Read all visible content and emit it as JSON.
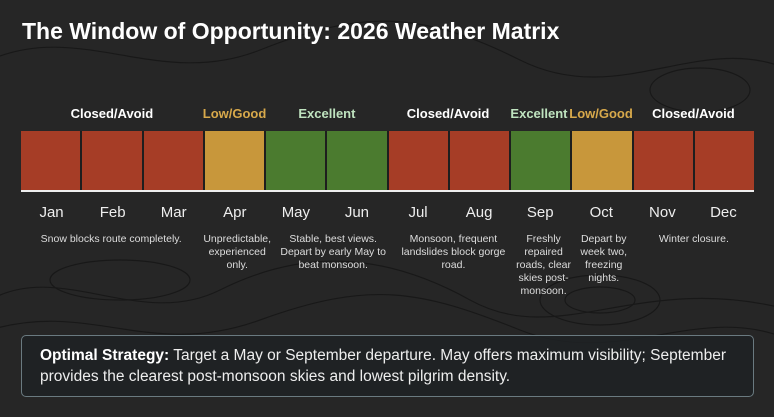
{
  "title": "The Window of Opportunity: 2026 Weather Matrix",
  "colors": {
    "closed": "#a63d26",
    "low": "#c8973b",
    "excellent": "#4b7b2f",
    "closed_label": "#ffffff",
    "low_label": "#d8a94b",
    "excellent_label": "#bfe3bf"
  },
  "groups": [
    {
      "label": "Closed/Avoid",
      "status": "closed",
      "span": [
        1,
        4
      ]
    },
    {
      "label": "Low/Good",
      "status": "low",
      "span": [
        4,
        5
      ]
    },
    {
      "label": "Excellent",
      "status": "excellent",
      "span": [
        5,
        7
      ]
    },
    {
      "label": "Closed/Avoid",
      "status": "closed",
      "span": [
        7,
        9
      ]
    },
    {
      "label": "Excellent",
      "status": "excellent",
      "span": [
        9,
        10
      ]
    },
    {
      "label": "Low/Good",
      "status": "low",
      "span": [
        10,
        11
      ]
    },
    {
      "label": "Closed/Avoid",
      "status": "closed",
      "span": [
        11,
        13
      ]
    }
  ],
  "months": [
    {
      "name": "Jan",
      "status": "closed"
    },
    {
      "name": "Feb",
      "status": "closed"
    },
    {
      "name": "Mar",
      "status": "closed"
    },
    {
      "name": "Apr",
      "status": "low"
    },
    {
      "name": "May",
      "status": "excellent"
    },
    {
      "name": "Jun",
      "status": "excellent"
    },
    {
      "name": "Jul",
      "status": "closed"
    },
    {
      "name": "Aug",
      "status": "closed"
    },
    {
      "name": "Sep",
      "status": "excellent"
    },
    {
      "name": "Oct",
      "status": "low"
    },
    {
      "name": "Nov",
      "status": "closed"
    },
    {
      "name": "Dec",
      "status": "closed"
    }
  ],
  "notes": [
    {
      "text": "Snow blocks route completely.",
      "span": [
        1,
        4
      ]
    },
    {
      "text": "Unpredictable, experienced only.",
      "span": [
        4,
        5
      ]
    },
    {
      "text": "Stable, best views. Depart by early May to beat monsoon.",
      "span": [
        5,
        7
      ]
    },
    {
      "text": "Monsoon, frequent landslides block gorge road.",
      "span": [
        7,
        9
      ]
    },
    {
      "text": "Freshly repaired roads, clear skies post-monsoon.",
      "span": [
        9,
        10
      ]
    },
    {
      "text": "Depart by week two, freezing nights.",
      "span": [
        10,
        11
      ]
    },
    {
      "text": "Winter closure.",
      "span": [
        11,
        13
      ]
    }
  ],
  "strategy": {
    "label": "Optimal Strategy:",
    "text": " Target a May or September departure. May offers maximum visibility; September provides the clearest post-monsoon skies and lowest pilgrim density."
  }
}
